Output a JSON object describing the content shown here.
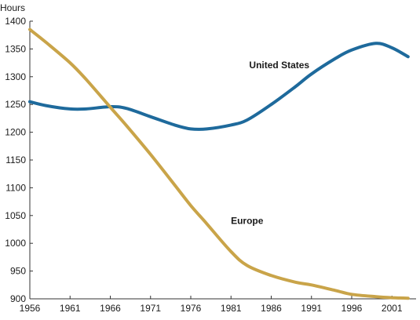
{
  "chart_data": {
    "type": "line",
    "title": "",
    "ylabel": "Hours",
    "xlabel": "",
    "xlim": [
      1956,
      2004
    ],
    "ylim": [
      900,
      1400
    ],
    "x_ticks": [
      1956,
      1961,
      1966,
      1971,
      1976,
      1981,
      1986,
      1991,
      1996,
      2001
    ],
    "y_ticks": [
      900,
      950,
      1000,
      1050,
      1100,
      1150,
      1200,
      1250,
      1300,
      1350,
      1400
    ],
    "grid": false,
    "legend": "none (inline labels)",
    "series": [
      {
        "name": "United States",
        "color": "#1e6a9c",
        "x": [
          1956,
          1958,
          1961,
          1963,
          1966,
          1968,
          1971,
          1974,
          1976,
          1978,
          1981,
          1983,
          1986,
          1989,
          1991,
          1994,
          1996,
          1999,
          2001,
          2003
        ],
        "y": [
          1255,
          1248,
          1242,
          1242,
          1246,
          1243,
          1228,
          1213,
          1206,
          1206,
          1213,
          1222,
          1250,
          1282,
          1305,
          1333,
          1348,
          1360,
          1352,
          1336
        ]
      },
      {
        "name": "Europe",
        "color": "#c9a449",
        "x": [
          1956,
          1958,
          1961,
          1963,
          1966,
          1968,
          1971,
          1974,
          1976,
          1978,
          1981,
          1983,
          1986,
          1989,
          1991,
          1994,
          1996,
          1999,
          2001,
          2003
        ],
        "y": [
          1385,
          1362,
          1325,
          1295,
          1245,
          1212,
          1160,
          1105,
          1068,
          1035,
          985,
          960,
          942,
          930,
          925,
          915,
          908,
          904,
          902,
          901
        ]
      }
    ],
    "annotations": [
      {
        "text": "United States",
        "series": "United States",
        "at": [
          1987,
          1315
        ]
      },
      {
        "text": "Europe",
        "series": "Europe",
        "at": [
          1983,
          1035
        ]
      }
    ]
  }
}
